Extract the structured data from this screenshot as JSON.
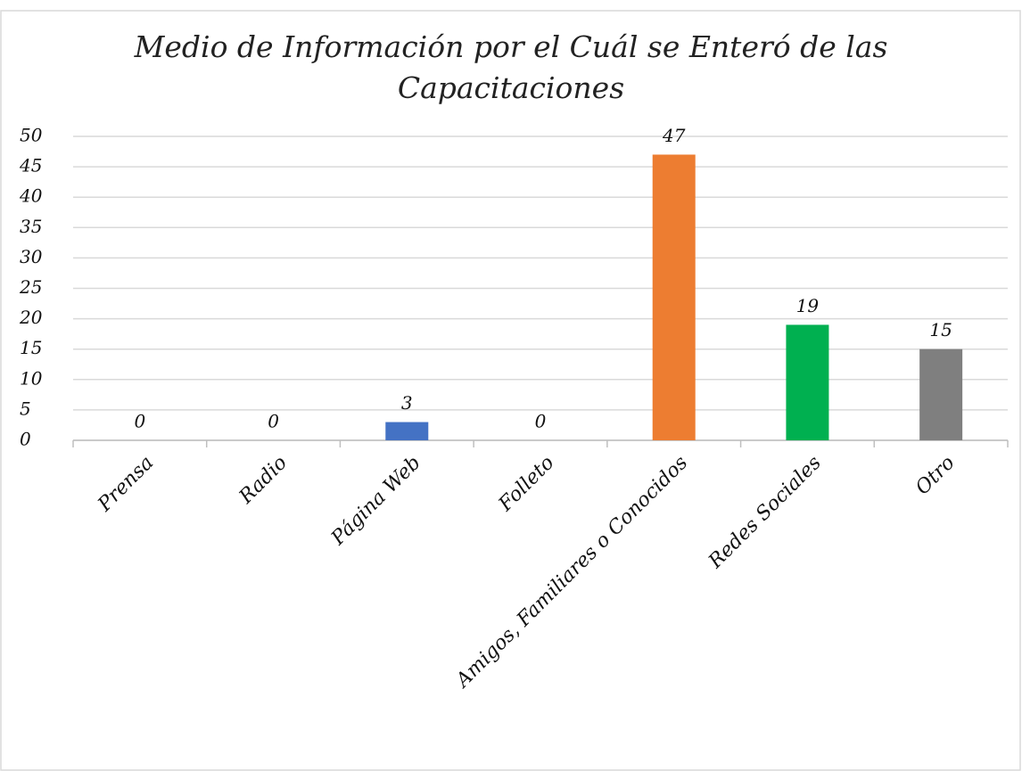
{
  "chart_data": {
    "type": "bar",
    "title": "Medio de Información por el Cuál se Enteró de las Capacitaciones",
    "categories": [
      "Prensa",
      "Radio",
      "Página Web",
      "Folleto",
      "Amigos, Familiares o Conocidos",
      "Redes Sociales",
      "Otro"
    ],
    "values": [
      0,
      0,
      3,
      0,
      47,
      19,
      15
    ],
    "colors": [
      "#4472c4",
      "#4472c4",
      "#4472c4",
      "#4472c4",
      "#ed7d31",
      "#00b050",
      "#7f7f7f"
    ],
    "ylim": [
      0,
      50
    ],
    "yticks": [
      0,
      5,
      10,
      15,
      20,
      25,
      30,
      35,
      40,
      45,
      50
    ],
    "grid": true
  }
}
